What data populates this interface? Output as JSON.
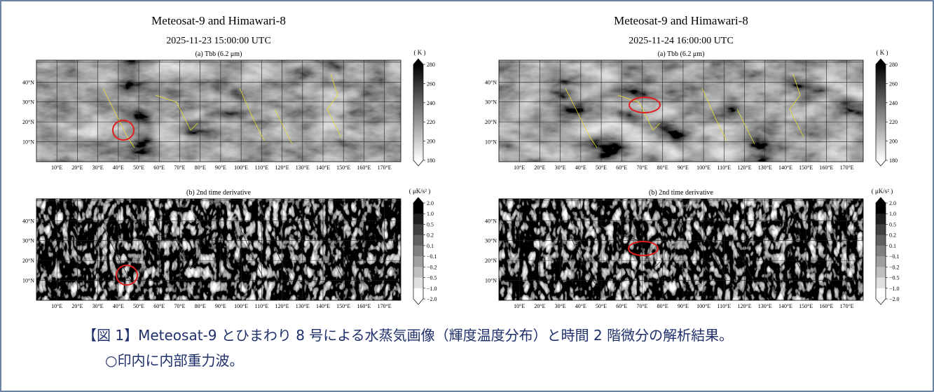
{
  "figures": [
    {
      "title": "Meteosat-9 and Himawari-8",
      "datetime": "2025-11-23 15:00:00 UTC",
      "panels": [
        {
          "title": "(a) Tbb (6.2 μm)",
          "unit": "( K )",
          "colorbar_ticks": [
            "280",
            "260",
            "240",
            "220",
            "200",
            "180"
          ]
        },
        {
          "title": "(b) 2nd time derivative",
          "unit": "( μK/s² )",
          "colorbar_ticks": [
            "2.0",
            "1.0",
            "0.5",
            "0.2",
            "0.1",
            "−0.1",
            "−0.2",
            "−0.5",
            "−1.0",
            "−2.0"
          ]
        }
      ]
    },
    {
      "title": "Meteosat-9 and Himawari-8",
      "datetime": "2025-11-24 16:00:00 UTC",
      "panels": [
        {
          "title": "(a) Tbb (6.2 μm)",
          "unit": "( K )",
          "colorbar_ticks": [
            "280",
            "260",
            "240",
            "220",
            "200",
            "180"
          ]
        },
        {
          "title": "(b) 2nd time derivative",
          "unit": "( μK/s² )",
          "colorbar_ticks": [
            "2.0",
            "1.0",
            "0.5",
            "0.2",
            "0.1",
            "−0.1",
            "−0.2",
            "−0.5",
            "−1.0",
            "−2.0"
          ]
        }
      ]
    }
  ],
  "lat_labels": [
    "40°N",
    "30°N",
    "20°N",
    "10°N"
  ],
  "lon_labels": [
    "10°E",
    "20°E",
    "30°E",
    "40°E",
    "50°E",
    "60°E",
    "70°E",
    "80°E",
    "90°E",
    "100°E",
    "110°E",
    "120°E",
    "130°E",
    "140°E",
    "150°E",
    "160°E",
    "170°E"
  ],
  "caption": {
    "line1": "【図 1】Meteosat-9 とひまわり 8 号による水蒸気画像（輝度温度分布）と時間 2 階微分の解析結果。",
    "line2": "○印内に内部重力波。"
  }
}
